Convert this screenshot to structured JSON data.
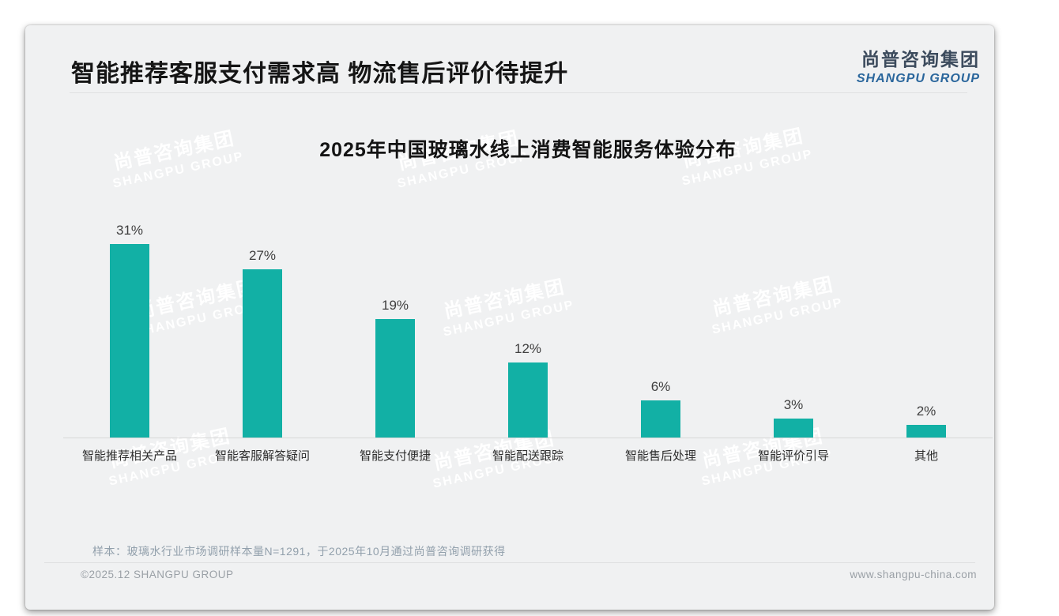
{
  "page": {
    "title": "智能推荐客服支付需求高 物流售后评价待提升",
    "logo": {
      "cn": "尚普咨询集团",
      "en": "SHANGPU GROUP"
    },
    "footnote": "样本：玻璃水行业市场调研样本量N=1291，于2025年10月通过尚普咨询调研获得",
    "footer": {
      "left": "©2025.12 SHANGPU GROUP",
      "right": "www.shangpu-china.com"
    },
    "watermark": {
      "cn": "尚普咨询集团",
      "en": "SHANGPU GROUP"
    }
  },
  "chart_data": {
    "type": "bar",
    "title": "2025年中国玻璃水线上消费智能服务体验分布",
    "categories": [
      "智能推荐相关产品",
      "智能客服解答疑问",
      "智能支付便捷",
      "智能配送跟踪",
      "智能售后处理",
      "智能评价引导",
      "其他"
    ],
    "values": [
      31,
      27,
      19,
      12,
      6,
      3,
      2
    ],
    "unit": "%",
    "value_labels": [
      "31%",
      "27%",
      "19%",
      "12%",
      "6%",
      "3%",
      "2%"
    ],
    "bar_color": "#12b0a5",
    "xlabel": "",
    "ylabel": "",
    "ylim": [
      0,
      33
    ],
    "grid": false,
    "legend": false,
    "value_label_position": "top"
  },
  "colors": {
    "accent_teal": "#12b0a5",
    "logo_blue": "#2a669c",
    "logo_dark": "#3c4b5d",
    "title_text": "#151515",
    "muted_text": "#9aa0a6",
    "footnote_text": "#92a0ac",
    "card_bg": "#f0f1f2"
  }
}
